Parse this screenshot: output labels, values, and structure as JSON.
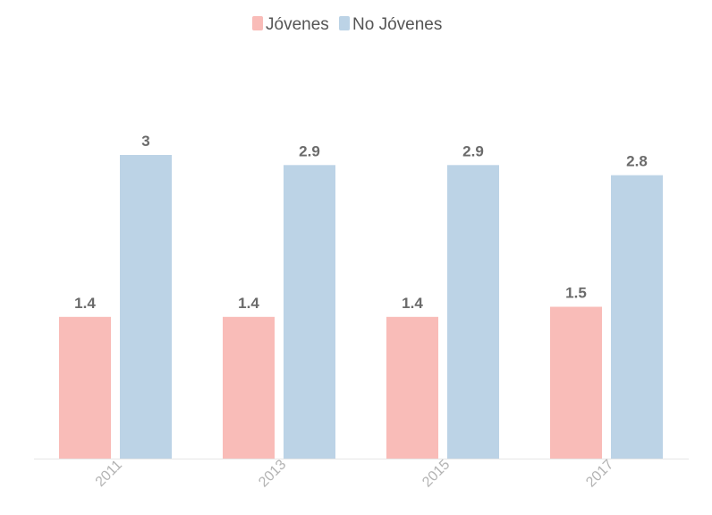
{
  "chart_data": {
    "type": "bar",
    "title": "",
    "xlabel": "",
    "ylabel": "",
    "categories": [
      "2011",
      "2013",
      "2015",
      "2017"
    ],
    "series": [
      {
        "name": "Jóvenes",
        "values": [
          1.4,
          1.4,
          1.4,
          1.5
        ],
        "color": "#f9bcb8",
        "labels": [
          "1.4",
          "1.4",
          "1.4",
          "1.5"
        ]
      },
      {
        "name": "No Jóvenes",
        "values": [
          3,
          2.9,
          2.9,
          2.8
        ],
        "color": "#bcd3e6",
        "labels": [
          "3",
          "2.9",
          "2.9",
          "2.8"
        ]
      }
    ],
    "ylim": [
      0,
      3
    ],
    "grid": false,
    "legend": "top-center",
    "data_labels": true
  }
}
